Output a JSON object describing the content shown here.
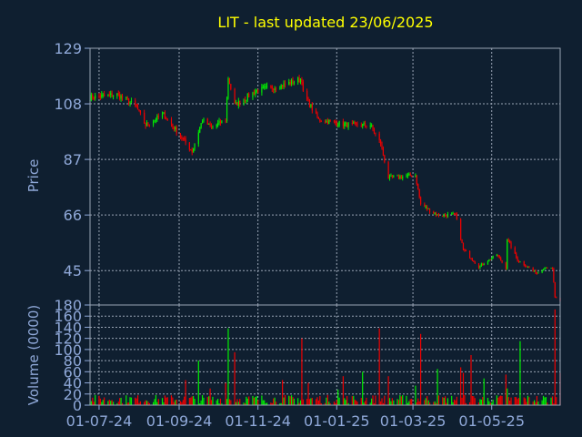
{
  "colors": {
    "background": "#0f1f30",
    "title": "#ffff00",
    "axis_text": "#8fa8d8",
    "grid": "#9aa5b5",
    "up": "#00ee00",
    "down": "#ee0000"
  },
  "chart_data": [
    {
      "type": "candlestick",
      "title": "LIT - last updated 23/06/2025",
      "ylabel": "Price",
      "ylim": [
        32,
        129
      ],
      "yticks": [
        45,
        66,
        87,
        108,
        129
      ],
      "date_range": [
        "2024-06-24",
        "2025-06-23"
      ],
      "grid": true,
      "anchors": [
        {
          "date": "2024-06-24",
          "close": 110.5
        },
        {
          "date": "2024-07-15",
          "close": 111.5
        },
        {
          "date": "2024-07-29",
          "close": 107.5
        },
        {
          "date": "2024-08-06",
          "close": 100.0
        },
        {
          "date": "2024-08-20",
          "close": 104.0
        },
        {
          "date": "2024-09-05",
          "close": 94.0
        },
        {
          "date": "2024-09-11",
          "close": 90.0
        },
        {
          "date": "2024-09-19",
          "close": 102.0
        },
        {
          "date": "2024-09-26",
          "close": 99.0
        },
        {
          "date": "2024-10-07",
          "close": 102.0
        },
        {
          "date": "2024-10-09",
          "close": 118.0
        },
        {
          "date": "2024-10-14",
          "close": 107.5
        },
        {
          "date": "2024-10-31",
          "close": 113.0
        },
        {
          "date": "2024-11-20",
          "close": 115.0
        },
        {
          "date": "2024-12-05",
          "close": 117.5
        },
        {
          "date": "2024-12-06",
          "close": 112.0
        },
        {
          "date": "2024-12-18",
          "close": 102.0
        },
        {
          "date": "2025-01-10",
          "close": 100.0
        },
        {
          "date": "2025-01-27",
          "close": 100.0
        },
        {
          "date": "2025-02-04",
          "close": 93.0
        },
        {
          "date": "2025-02-10",
          "close": 80.0
        },
        {
          "date": "2025-03-03",
          "close": 81.0
        },
        {
          "date": "2025-03-07",
          "close": 70.0
        },
        {
          "date": "2025-03-20",
          "close": 66.0
        },
        {
          "date": "2025-04-03",
          "close": 66.0
        },
        {
          "date": "2025-04-09",
          "close": 53.0
        },
        {
          "date": "2025-04-21",
          "close": 46.5
        },
        {
          "date": "2025-05-05",
          "close": 51.0
        },
        {
          "date": "2025-05-12",
          "close": 46.0
        },
        {
          "date": "2025-05-13",
          "close": 57.0
        },
        {
          "date": "2025-05-21",
          "close": 49.0
        },
        {
          "date": "2025-06-05",
          "close": 44.0
        },
        {
          "date": "2025-06-12",
          "close": 46.5
        },
        {
          "date": "2025-06-17",
          "close": 45.5
        },
        {
          "date": "2025-06-19",
          "close": 35.0
        },
        {
          "date": "2025-06-23",
          "close": 33.0
        }
      ]
    },
    {
      "type": "bar",
      "ylabel": "Volume (0000)",
      "ylim": [
        0,
        180
      ],
      "yticks": [
        0,
        20,
        40,
        60,
        80,
        100,
        120,
        140,
        160,
        180
      ],
      "xticks": [
        "01-07-24",
        "01-09-24",
        "01-11-24",
        "01-01-25",
        "01-03-25",
        "01-05-25"
      ],
      "xtick_dates": [
        "2024-07-01",
        "2024-09-01",
        "2024-11-01",
        "2025-01-01",
        "2025-03-01",
        "2025-05-01"
      ],
      "base_volume": 12,
      "spikes": [
        {
          "date": "2024-09-06",
          "value": 45
        },
        {
          "date": "2024-09-16",
          "value": 80
        },
        {
          "date": "2024-09-25",
          "value": 30
        },
        {
          "date": "2024-10-07",
          "value": 40
        },
        {
          "date": "2024-10-09",
          "value": 138
        },
        {
          "date": "2024-10-14",
          "value": 95
        },
        {
          "date": "2024-11-20",
          "value": 45
        },
        {
          "date": "2024-12-05",
          "value": 120
        },
        {
          "date": "2024-12-10",
          "value": 40
        },
        {
          "date": "2025-01-02",
          "value": 28
        },
        {
          "date": "2025-01-06",
          "value": 52
        },
        {
          "date": "2025-01-21",
          "value": 60
        },
        {
          "date": "2025-02-03",
          "value": 138
        },
        {
          "date": "2025-02-10",
          "value": 52
        },
        {
          "date": "2025-03-03",
          "value": 35
        },
        {
          "date": "2025-03-07",
          "value": 128
        },
        {
          "date": "2025-03-20",
          "value": 65
        },
        {
          "date": "2025-04-07",
          "value": 68
        },
        {
          "date": "2025-04-09",
          "value": 58
        },
        {
          "date": "2025-04-15",
          "value": 90
        },
        {
          "date": "2025-04-25",
          "value": 48
        },
        {
          "date": "2025-05-12",
          "value": 55
        },
        {
          "date": "2025-05-13",
          "value": 30
        },
        {
          "date": "2025-05-23",
          "value": 115
        },
        {
          "date": "2025-06-19",
          "value": 172
        },
        {
          "date": "2025-06-23",
          "value": 58
        }
      ]
    }
  ]
}
